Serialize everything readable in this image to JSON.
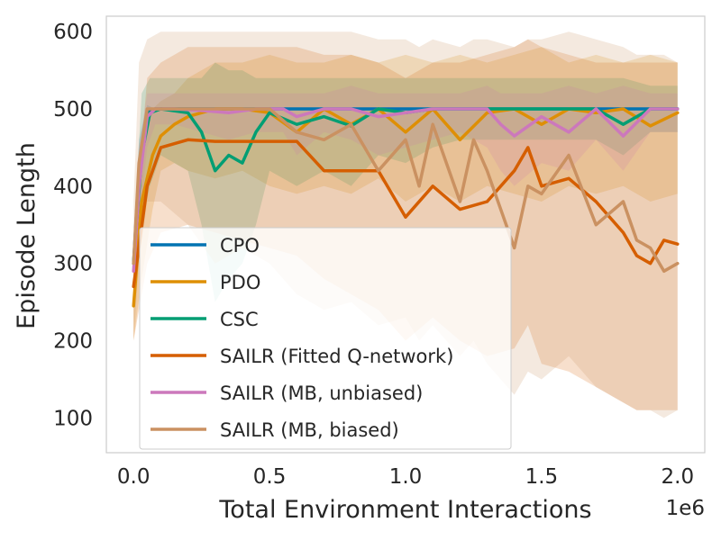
{
  "chart_data": {
    "type": "line",
    "title": "",
    "xlabel": "Total Environment Interactions",
    "ylabel": "Episode Length",
    "x_offset_label": "1e6",
    "xlim": [
      -0.1,
      2.1
    ],
    "ylim": [
      55,
      620
    ],
    "xticks": [
      0.0,
      0.5,
      1.0,
      1.5,
      2.0
    ],
    "xtick_labels": [
      "0.0",
      "0.5",
      "1.0",
      "1.5",
      "2.0"
    ],
    "yticks": [
      100,
      200,
      300,
      400,
      500,
      600
    ],
    "ytick_labels": [
      "100",
      "200",
      "300",
      "400",
      "500",
      "600"
    ],
    "grid": false,
    "legend_position": "lower-left",
    "series": [
      {
        "name": "CPO",
        "color": "#0173b2",
        "x": [
          0.0,
          0.02,
          0.05,
          0.08,
          0.2,
          0.4,
          0.6,
          0.8,
          1.0,
          1.2,
          1.4,
          1.6,
          1.8,
          2.0
        ],
        "y": [
          300,
          420,
          495,
          500,
          500,
          500,
          500,
          500,
          500,
          500,
          500,
          500,
          500,
          500
        ],
        "y_low": [
          300,
          380,
          480,
          500,
          500,
          500,
          500,
          500,
          500,
          500,
          500,
          500,
          500,
          500
        ],
        "y_high": [
          300,
          460,
          505,
          500,
          500,
          500,
          500,
          500,
          500,
          500,
          500,
          500,
          500,
          500
        ]
      },
      {
        "name": "PDO",
        "color": "#de8f05",
        "x": [
          0.0,
          0.03,
          0.07,
          0.1,
          0.15,
          0.2,
          0.3,
          0.4,
          0.5,
          0.6,
          0.7,
          0.8,
          0.9,
          1.0,
          1.1,
          1.2,
          1.3,
          1.4,
          1.5,
          1.6,
          1.7,
          1.8,
          1.9,
          2.0
        ],
        "y": [
          245,
          380,
          440,
          465,
          480,
          490,
          500,
          500,
          495,
          470,
          500,
          480,
          500,
          470,
          500,
          460,
          495,
          500,
          480,
          500,
          495,
          500,
          478,
          495
        ],
        "y_low": [
          200,
          280,
          370,
          420,
          430,
          420,
          410,
          420,
          400,
          390,
          400,
          390,
          410,
          380,
          400,
          380,
          400,
          390,
          380,
          400,
          390,
          400,
          380,
          390
        ],
        "y_high": [
          290,
          460,
          500,
          510,
          520,
          540,
          560,
          560,
          570,
          560,
          560,
          570,
          560,
          570,
          560,
          570,
          560,
          570,
          580,
          560,
          570,
          560,
          570,
          560
        ]
      },
      {
        "name": "CSC",
        "color": "#029e73",
        "x": [
          0.0,
          0.03,
          0.06,
          0.1,
          0.2,
          0.25,
          0.3,
          0.35,
          0.4,
          0.45,
          0.5,
          0.6,
          0.7,
          0.8,
          0.9,
          1.0,
          1.1,
          1.2,
          1.3,
          1.4,
          1.5,
          1.6,
          1.7,
          1.8,
          1.9,
          2.0
        ],
        "y": [
          300,
          440,
          495,
          500,
          495,
          470,
          420,
          440,
          430,
          470,
          495,
          480,
          490,
          478,
          500,
          495,
          500,
          500,
          500,
          500,
          500,
          500,
          500,
          480,
          500,
          500
        ],
        "y_low": [
          250,
          350,
          400,
          440,
          420,
          350,
          250,
          280,
          300,
          350,
          420,
          400,
          420,
          400,
          440,
          430,
          450,
          460,
          460,
          460,
          460,
          460,
          460,
          440,
          470,
          470
        ],
        "y_high": [
          330,
          520,
          540,
          540,
          540,
          540,
          560,
          550,
          550,
          540,
          540,
          540,
          540,
          540,
          540,
          540,
          540,
          540,
          540,
          540,
          540,
          540,
          540,
          540,
          530,
          530
        ]
      },
      {
        "name": "SAILR (Fitted Q-network)",
        "color": "#d55e00",
        "x": [
          0.0,
          0.05,
          0.1,
          0.2,
          0.3,
          0.4,
          0.5,
          0.6,
          0.7,
          0.8,
          0.9,
          1.0,
          1.1,
          1.2,
          1.3,
          1.4,
          1.45,
          1.5,
          1.6,
          1.7,
          1.8,
          1.85,
          1.9,
          1.95,
          2.0
        ],
        "y": [
          270,
          400,
          450,
          460,
          458,
          458,
          458,
          458,
          420,
          420,
          420,
          360,
          400,
          370,
          380,
          420,
          450,
          400,
          410,
          380,
          340,
          310,
          300,
          330,
          325
        ],
        "y_low": [
          200,
          300,
          340,
          350,
          340,
          330,
          320,
          310,
          280,
          260,
          240,
          200,
          230,
          200,
          180,
          190,
          220,
          170,
          160,
          140,
          120,
          110,
          110,
          110,
          110
        ],
        "y_high": [
          330,
          540,
          560,
          580,
          580,
          580,
          580,
          580,
          570,
          570,
          560,
          540,
          560,
          560,
          570,
          580,
          590,
          580,
          570,
          560,
          560,
          560,
          560,
          560,
          560
        ]
      },
      {
        "name": "SAILR (MB, unbiased)",
        "color": "#cc78bc",
        "x": [
          0.0,
          0.02,
          0.05,
          0.08,
          0.15,
          0.25,
          0.35,
          0.45,
          0.55,
          0.6,
          0.7,
          0.8,
          0.9,
          1.0,
          1.1,
          1.2,
          1.3,
          1.35,
          1.4,
          1.5,
          1.6,
          1.7,
          1.8,
          1.9,
          2.0
        ],
        "y": [
          290,
          400,
          490,
          500,
          500,
          498,
          495,
          500,
          500,
          490,
          500,
          500,
          490,
          495,
          500,
          500,
          500,
          480,
          465,
          490,
          470,
          500,
          465,
          500,
          500
        ],
        "y_low": [
          260,
          350,
          450,
          480,
          480,
          470,
          460,
          470,
          470,
          440,
          470,
          460,
          440,
          450,
          460,
          470,
          450,
          420,
          400,
          430,
          420,
          460,
          420,
          470,
          470
        ],
        "y_high": [
          320,
          450,
          520,
          520,
          520,
          520,
          520,
          520,
          520,
          520,
          520,
          530,
          520,
          520,
          520,
          520,
          530,
          520,
          520,
          520,
          530,
          520,
          530,
          520,
          520
        ]
      },
      {
        "name": "SAILR (MB, biased)",
        "color": "#ca9161",
        "x": [
          0.0,
          0.02,
          0.05,
          0.1,
          0.2,
          0.3,
          0.4,
          0.5,
          0.6,
          0.7,
          0.8,
          0.9,
          1.0,
          1.05,
          1.1,
          1.2,
          1.25,
          1.3,
          1.4,
          1.45,
          1.5,
          1.6,
          1.7,
          1.8,
          1.85,
          1.9,
          1.95,
          2.0
        ],
        "y": [
          300,
          430,
          500,
          500,
          500,
          500,
          500,
          500,
          470,
          460,
          480,
          420,
          460,
          400,
          480,
          380,
          460,
          420,
          320,
          400,
          390,
          440,
          350,
          380,
          330,
          320,
          290,
          300
        ],
        "y_low": [
          200,
          300,
          380,
          380,
          350,
          300,
          320,
          300,
          260,
          240,
          250,
          220,
          230,
          200,
          220,
          180,
          200,
          170,
          130,
          160,
          150,
          180,
          140,
          120,
          110,
          110,
          100,
          110
        ],
        "y_high": [
          380,
          560,
          590,
          600,
          600,
          600,
          600,
          600,
          600,
          600,
          600,
          590,
          590,
          580,
          590,
          580,
          590,
          590,
          580,
          590,
          590,
          600,
          590,
          580,
          570,
          570,
          570,
          560
        ]
      }
    ]
  }
}
